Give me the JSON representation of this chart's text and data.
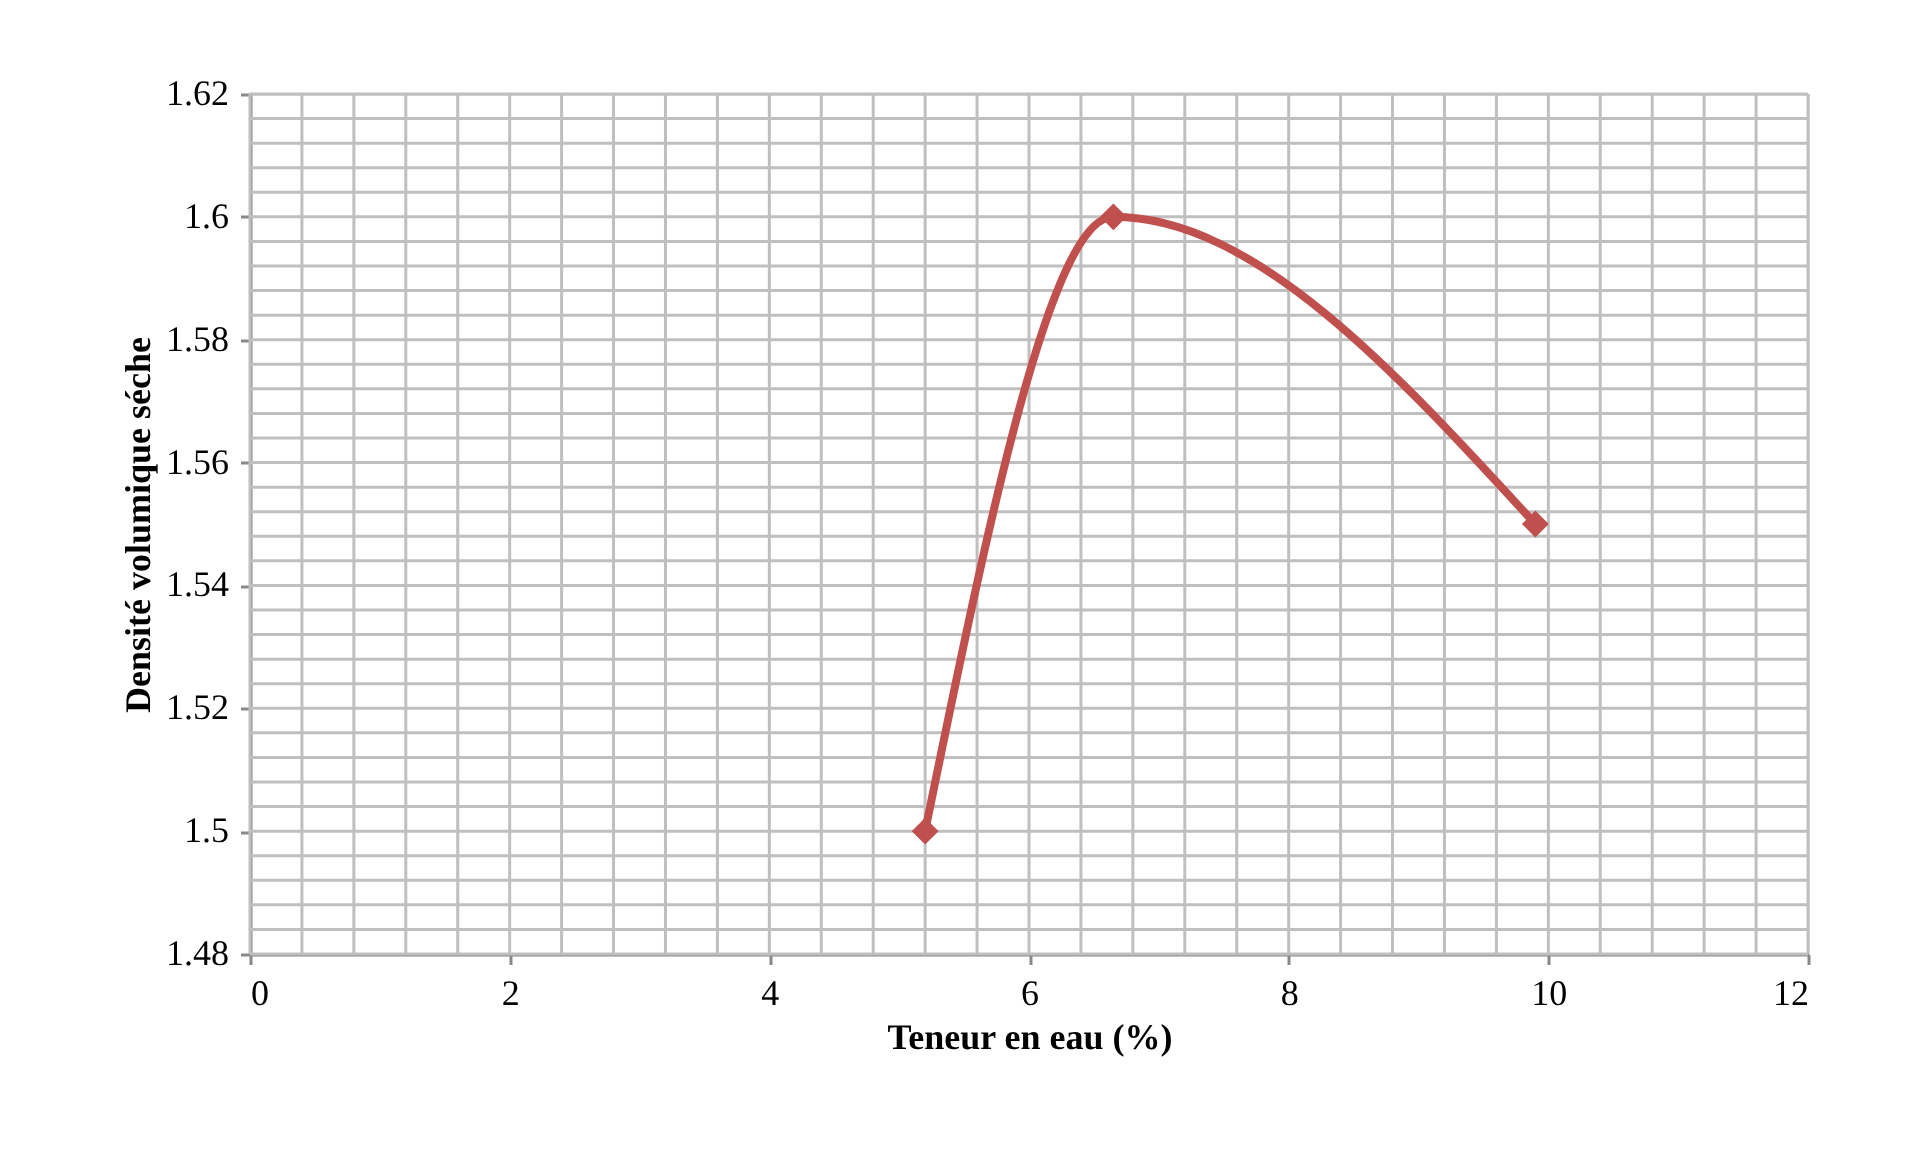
{
  "chart_data": {
    "type": "line",
    "xlabel": "Teneur en eau (%)",
    "ylabel": "Densité volumique séche",
    "x": [
      5.2,
      6.65,
      9.9
    ],
    "series": [
      {
        "color": "#c0504d",
        "values": [
          1.5,
          1.6,
          1.55
        ]
      }
    ],
    "xlim": [
      0,
      12
    ],
    "ylim": [
      1.48,
      1.62
    ],
    "xticks": [
      0,
      {
        "value": 0.4,
        "label": null
      },
      {
        "value": 0.8,
        "label": null
      },
      {
        "value": 1.2,
        "label": null
      },
      {
        "value": 1.6,
        "label": null
      },
      2,
      {
        "value": 2.4,
        "label": null
      },
      {
        "value": 2.8,
        "label": null
      },
      {
        "value": 3.2,
        "label": null
      },
      {
        "value": 3.6,
        "label": null
      },
      4,
      {
        "value": 4.4,
        "label": null
      },
      {
        "value": 4.8,
        "label": null
      },
      {
        "value": 5.2,
        "label": null
      },
      {
        "value": 5.6,
        "label": null
      },
      6,
      {
        "value": 6.4,
        "label": null
      },
      {
        "value": 6.8,
        "label": null
      },
      {
        "value": 7.2,
        "label": null
      },
      {
        "value": 7.6,
        "label": null
      },
      8,
      {
        "value": 8.4,
        "label": null
      },
      {
        "value": 8.8,
        "label": null
      },
      {
        "value": 9.2,
        "label": null
      },
      {
        "value": 9.6,
        "label": null
      },
      10,
      {
        "value": 10.4,
        "label": null
      },
      {
        "value": 10.8,
        "label": null
      },
      {
        "value": 11.2,
        "label": null
      },
      {
        "value": 11.6,
        "label": null
      },
      12
    ],
    "yticks": [
      1.48,
      {
        "value": 1.484,
        "label": null
      },
      {
        "value": 1.488,
        "label": null
      },
      {
        "value": 1.492,
        "label": null
      },
      {
        "value": 1.496,
        "label": null
      },
      1.5,
      {
        "value": 1.504,
        "label": null
      },
      {
        "value": 1.508,
        "label": null
      },
      {
        "value": 1.512,
        "label": null
      },
      {
        "value": 1.516,
        "label": null
      },
      1.52,
      {
        "value": 1.524,
        "label": null
      },
      {
        "value": 1.528,
        "label": null
      },
      {
        "value": 1.532,
        "label": null
      },
      {
        "value": 1.536,
        "label": null
      },
      1.54,
      {
        "value": 1.544,
        "label": null
      },
      {
        "value": 1.548,
        "label": null
      },
      {
        "value": 1.552,
        "label": null
      },
      {
        "value": 1.556,
        "label": null
      },
      1.56,
      {
        "value": 1.564,
        "label": null
      },
      {
        "value": 1.568,
        "label": null
      },
      {
        "value": 1.572,
        "label": null
      },
      {
        "value": 1.576,
        "label": null
      },
      1.58,
      {
        "value": 1.584,
        "label": null
      },
      {
        "value": 1.588,
        "label": null
      },
      {
        "value": 1.592,
        "label": null
      },
      {
        "value": 1.596,
        "label": null
      },
      1.6,
      {
        "value": 1.604,
        "label": null
      },
      {
        "value": 1.608,
        "label": null
      },
      {
        "value": 1.612,
        "label": null
      },
      {
        "value": 1.616,
        "label": null
      },
      1.62
    ],
    "grid": true,
    "marker": "diamond",
    "line_style": "solid"
  }
}
